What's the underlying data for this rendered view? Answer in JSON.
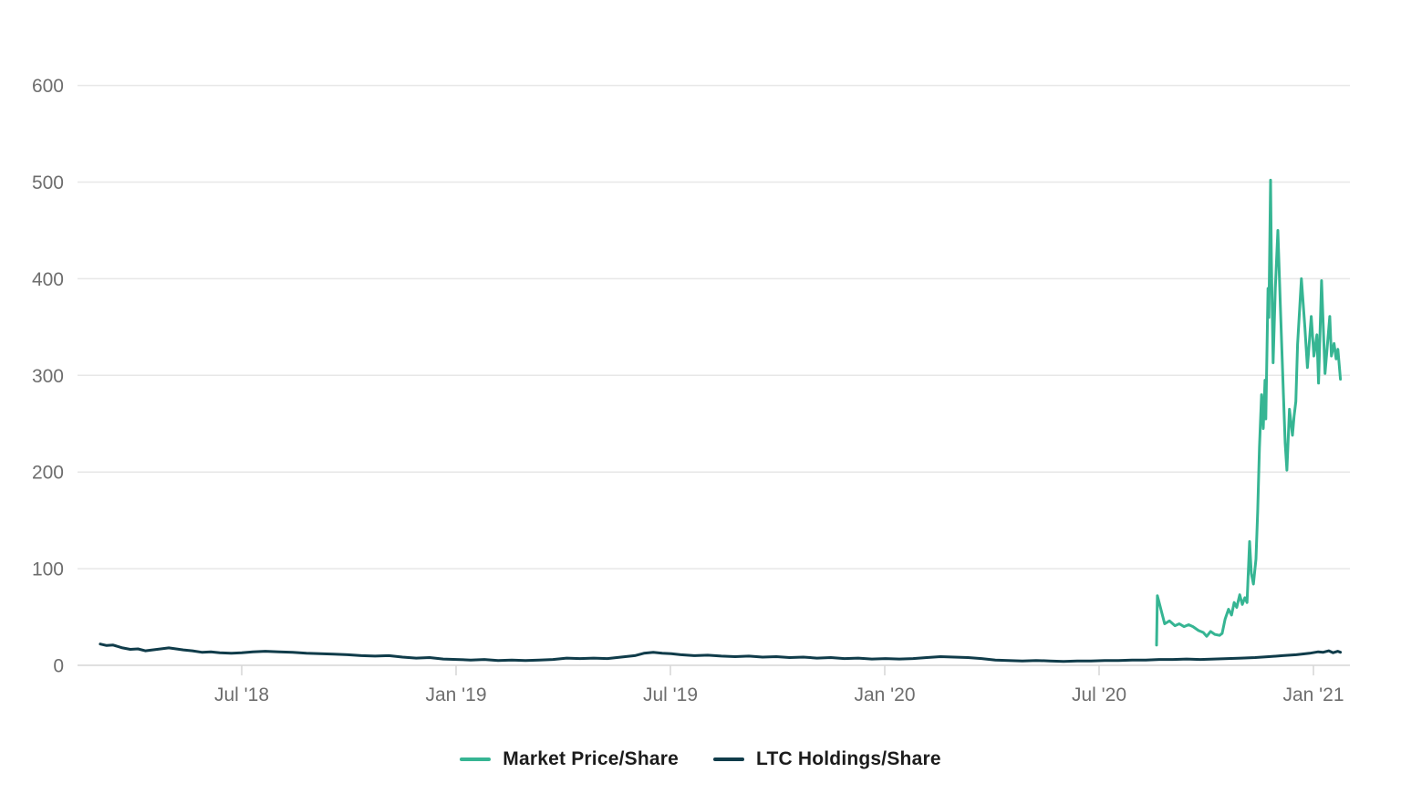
{
  "chart_data": {
    "type": "line",
    "title": "",
    "xlabel": "",
    "ylabel": "",
    "grid": "horizontal",
    "legend_position": "bottom-center",
    "x_axis": {
      "unit": "decimal_year",
      "range": [
        2018.117,
        2021.085
      ],
      "tick_positions": [
        2018.5,
        2019.0,
        2019.5,
        2020.0,
        2020.5,
        2021.0
      ],
      "tick_labels": [
        "Jul '18",
        "Jan '19",
        "Jul '19",
        "Jan '20",
        "Jul '20",
        "Jan '21"
      ]
    },
    "y_axis": {
      "range": [
        0,
        600
      ],
      "ticks": [
        0,
        100,
        200,
        300,
        400,
        500,
        600
      ],
      "tick_labels": [
        "0",
        "100",
        "200",
        "300",
        "400",
        "500",
        "600"
      ]
    },
    "series": [
      {
        "name": "Market Price/Share",
        "color": "#36b593",
        "points": [
          [
            2020.634,
            21
          ],
          [
            2020.636,
            72
          ],
          [
            2020.653,
            43
          ],
          [
            2020.664,
            46
          ],
          [
            2020.677,
            41
          ],
          [
            2020.687,
            43
          ],
          [
            2020.698,
            40
          ],
          [
            2020.709,
            42
          ],
          [
            2020.719,
            40
          ],
          [
            2020.732,
            36
          ],
          [
            2020.743,
            34
          ],
          [
            2020.751,
            30
          ],
          [
            2020.76,
            35
          ],
          [
            2020.77,
            32
          ],
          [
            2020.781,
            31
          ],
          [
            2020.787,
            33
          ],
          [
            2020.794,
            48
          ],
          [
            2020.802,
            58
          ],
          [
            2020.809,
            52
          ],
          [
            2020.815,
            65
          ],
          [
            2020.821,
            60
          ],
          [
            2020.828,
            73
          ],
          [
            2020.834,
            63
          ],
          [
            2020.84,
            70
          ],
          [
            2020.845,
            65
          ],
          [
            2020.851,
            128
          ],
          [
            2020.855,
            95
          ],
          [
            2020.86,
            84
          ],
          [
            2020.866,
            110
          ],
          [
            2020.87,
            160
          ],
          [
            2020.874,
            225
          ],
          [
            2020.879,
            280
          ],
          [
            2020.883,
            245
          ],
          [
            2020.887,
            295
          ],
          [
            2020.889,
            255
          ],
          [
            2020.894,
            390
          ],
          [
            2020.896,
            360
          ],
          [
            2020.9,
            502
          ],
          [
            2020.902,
            420
          ],
          [
            2020.906,
            313
          ],
          [
            2020.911,
            390
          ],
          [
            2020.917,
            450
          ],
          [
            2020.923,
            370
          ],
          [
            2020.93,
            280
          ],
          [
            2020.934,
            230
          ],
          [
            2020.938,
            202
          ],
          [
            2020.944,
            265
          ],
          [
            2020.951,
            238
          ],
          [
            2020.955,
            258
          ],
          [
            2020.959,
            273
          ],
          [
            2020.963,
            332
          ],
          [
            2020.972,
            400
          ],
          [
            2020.98,
            350
          ],
          [
            2020.986,
            308
          ],
          [
            2020.995,
            361
          ],
          [
            2021.001,
            320
          ],
          [
            2021.008,
            342
          ],
          [
            2021.012,
            292
          ],
          [
            2021.019,
            398
          ],
          [
            2021.027,
            302
          ],
          [
            2021.038,
            361
          ],
          [
            2021.042,
            320
          ],
          [
            2021.048,
            333
          ],
          [
            2021.053,
            317
          ],
          [
            2021.057,
            327
          ],
          [
            2021.063,
            296
          ]
        ]
      },
      {
        "name": "LTC Holdings/Share",
        "color": "#103c4a",
        "points": [
          [
            2018.17,
            22
          ],
          [
            2018.185,
            20.5
          ],
          [
            2018.2,
            21
          ],
          [
            2018.222,
            18
          ],
          [
            2018.24,
            16.5
          ],
          [
            2018.258,
            17
          ],
          [
            2018.275,
            15
          ],
          [
            2018.292,
            16
          ],
          [
            2018.311,
            17
          ],
          [
            2018.33,
            18
          ],
          [
            2018.347,
            17
          ],
          [
            2018.364,
            16
          ],
          [
            2018.385,
            15
          ],
          [
            2018.407,
            13.5
          ],
          [
            2018.428,
            14
          ],
          [
            2018.449,
            13
          ],
          [
            2018.475,
            12.5
          ],
          [
            2018.5,
            13
          ],
          [
            2018.526,
            14
          ],
          [
            2018.555,
            14.5
          ],
          [
            2018.587,
            14
          ],
          [
            2018.619,
            13.5
          ],
          [
            2018.651,
            12.5
          ],
          [
            2018.683,
            12
          ],
          [
            2018.715,
            11.5
          ],
          [
            2018.747,
            11
          ],
          [
            2018.779,
            10
          ],
          [
            2018.811,
            9.5
          ],
          [
            2018.843,
            10
          ],
          [
            2018.875,
            8.5
          ],
          [
            2018.907,
            7.5
          ],
          [
            2018.938,
            8
          ],
          [
            2018.97,
            6.5
          ],
          [
            2019.002,
            6
          ],
          [
            2019.034,
            5.5
          ],
          [
            2019.066,
            6
          ],
          [
            2019.098,
            5
          ],
          [
            2019.13,
            5.5
          ],
          [
            2019.162,
            5
          ],
          [
            2019.194,
            5.5
          ],
          [
            2019.226,
            6
          ],
          [
            2019.258,
            7.5
          ],
          [
            2019.289,
            7
          ],
          [
            2019.321,
            7.5
          ],
          [
            2019.353,
            7
          ],
          [
            2019.385,
            8.5
          ],
          [
            2019.417,
            10
          ],
          [
            2019.438,
            12.5
          ],
          [
            2019.46,
            13.5
          ],
          [
            2019.481,
            12.5
          ],
          [
            2019.502,
            12
          ],
          [
            2019.524,
            11
          ],
          [
            2019.555,
            10
          ],
          [
            2019.587,
            10.5
          ],
          [
            2019.619,
            9.5
          ],
          [
            2019.651,
            9
          ],
          [
            2019.683,
            9.5
          ],
          [
            2019.715,
            8.5
          ],
          [
            2019.747,
            9
          ],
          [
            2019.778,
            8
          ],
          [
            2019.81,
            8.5
          ],
          [
            2019.842,
            7.5
          ],
          [
            2019.874,
            8
          ],
          [
            2019.906,
            7
          ],
          [
            2019.938,
            7.5
          ],
          [
            2019.97,
            6.5
          ],
          [
            2020.002,
            7
          ],
          [
            2020.034,
            6.5
          ],
          [
            2020.066,
            7
          ],
          [
            2020.098,
            8
          ],
          [
            2020.13,
            9
          ],
          [
            2020.162,
            8.5
          ],
          [
            2020.194,
            8
          ],
          [
            2020.226,
            7
          ],
          [
            2020.258,
            5.5
          ],
          [
            2020.289,
            5
          ],
          [
            2020.321,
            4.5
          ],
          [
            2020.353,
            5
          ],
          [
            2020.385,
            4.5
          ],
          [
            2020.417,
            4
          ],
          [
            2020.449,
            4.5
          ],
          [
            2020.481,
            4.5
          ],
          [
            2020.513,
            5
          ],
          [
            2020.545,
            5
          ],
          [
            2020.577,
            5.5
          ],
          [
            2020.609,
            5.5
          ],
          [
            2020.64,
            6
          ],
          [
            2020.672,
            6
          ],
          [
            2020.704,
            6.5
          ],
          [
            2020.736,
            6
          ],
          [
            2020.768,
            6.5
          ],
          [
            2020.8,
            7
          ],
          [
            2020.832,
            7.5
          ],
          [
            2020.864,
            8
          ],
          [
            2020.896,
            9
          ],
          [
            2020.928,
            10
          ],
          [
            2020.96,
            11
          ],
          [
            2020.991,
            12.5
          ],
          [
            2021.011,
            14
          ],
          [
            2021.023,
            13.5
          ],
          [
            2021.036,
            15
          ],
          [
            2021.046,
            13
          ],
          [
            2021.057,
            14.5
          ],
          [
            2021.063,
            13.5
          ]
        ]
      }
    ]
  },
  "legend": {
    "items": [
      {
        "label": "Market Price/Share",
        "color": "#36b593"
      },
      {
        "label": "LTC Holdings/Share",
        "color": "#103c4a"
      }
    ]
  },
  "colors": {
    "background": "#ffffff",
    "gridline": "#e7e7e7",
    "axis_line": "#d6d6d6",
    "tick_mark": "#d6d6d6",
    "axis_label_text": "#6e6e6e",
    "legend_text": "#1c1c1c"
  }
}
